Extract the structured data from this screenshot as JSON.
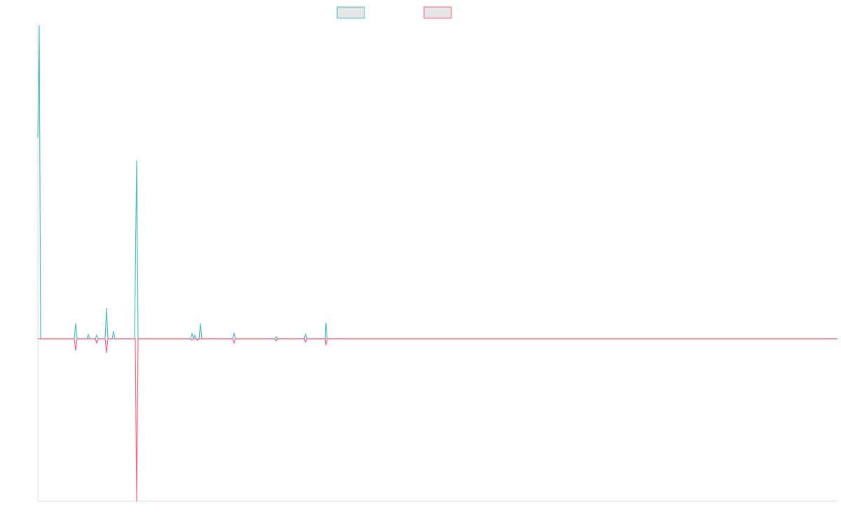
{
  "chart_data": {
    "type": "line",
    "xlim": [
      0,
      1141
    ],
    "ylim": [
      -232,
      448
    ],
    "series": [
      {
        "color": "#4bc0c0",
        "x": [
          0,
          2,
          4,
          52,
          54,
          56,
          70,
          72,
          74,
          82,
          84,
          86,
          96,
          98,
          100,
          106,
          108,
          110,
          138,
          141,
          143,
          218,
          220,
          222,
          224,
          226,
          230,
          232,
          234,
          278,
          280,
          282,
          338,
          340,
          342,
          380,
          382,
          384,
          410,
          411,
          413,
          1141
        ],
        "values": [
          287,
          448,
          0,
          0,
          22,
          0,
          0,
          6,
          0,
          0,
          5,
          0,
          0,
          44,
          0,
          0,
          11,
          0,
          0,
          255,
          0,
          0,
          8,
          0,
          5,
          0,
          0,
          22,
          0,
          0,
          8,
          0,
          0,
          3,
          0,
          0,
          7,
          0,
          0,
          23,
          0,
          0
        ]
      },
      {
        "color": "#ff6384",
        "x": [
          0,
          52,
          54,
          56,
          82,
          84,
          86,
          96,
          98,
          100,
          139,
          141,
          143,
          218,
          220,
          222,
          226,
          228,
          230,
          278,
          280,
          282,
          338,
          340,
          342,
          380,
          382,
          384,
          410,
          411,
          413,
          1141
        ],
        "values": [
          0,
          0,
          -17,
          0,
          0,
          -6,
          0,
          0,
          -20,
          0,
          0,
          -232,
          0,
          0,
          -2,
          0,
          0,
          -2,
          0,
          0,
          -6,
          0,
          0,
          -3,
          0,
          0,
          -5,
          0,
          0,
          -9,
          0,
          0
        ]
      }
    ]
  }
}
